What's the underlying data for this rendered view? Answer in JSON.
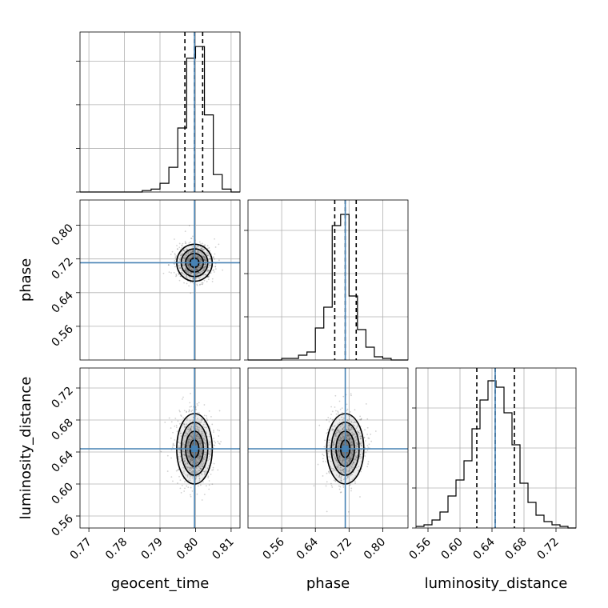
{
  "chart_data": {
    "type": "corner",
    "truth_color": "#4682b4",
    "parameters": [
      {
        "name": "geocent_time",
        "label": "geocent_time",
        "range": [
          0.7675,
          0.8125
        ],
        "ticks": [
          0.77,
          0.78,
          0.79,
          0.8,
          0.81
        ],
        "tick_labels": [
          "0.77",
          "0.78",
          "0.79",
          "0.80",
          "0.81"
        ],
        "truth": 0.7997,
        "quantiles": [
          0.797,
          0.7997,
          0.802
        ],
        "hist_bins": [
          0.7675,
          0.77,
          0.7725,
          0.775,
          0.7775,
          0.78,
          0.7825,
          0.785,
          0.7875,
          0.79,
          0.7925,
          0.795,
          0.7975,
          0.8,
          0.8025,
          0.805,
          0.8075,
          0.81,
          0.8125
        ],
        "hist_counts": [
          0,
          0,
          0,
          0,
          0,
          0,
          0,
          1,
          2,
          6,
          17,
          44,
          92,
          100,
          53,
          12,
          2,
          0
        ],
        "hist_ylim": [
          0,
          110
        ],
        "hist_grid": [
          30,
          60,
          90
        ]
      },
      {
        "name": "phase",
        "label": "phase",
        "range": [
          0.48,
          0.86
        ],
        "ticks": [
          0.56,
          0.64,
          0.72,
          0.8
        ],
        "tick_labels": [
          "0.56",
          "0.64",
          "0.72",
          "0.80"
        ],
        "truth": 0.711,
        "quantiles": [
          0.686,
          0.711,
          0.737
        ],
        "hist_bins": [
          0.48,
          0.5,
          0.52,
          0.54,
          0.56,
          0.58,
          0.6,
          0.62,
          0.64,
          0.66,
          0.68,
          0.7,
          0.72,
          0.74,
          0.76,
          0.78,
          0.8,
          0.82,
          0.84,
          0.86
        ],
        "hist_counts": [
          0,
          0,
          0,
          0,
          1,
          1,
          3,
          5,
          20,
          33,
          84,
          91,
          40,
          19,
          8,
          2,
          1,
          0,
          0
        ],
        "hist_ylim": [
          0,
          100
        ],
        "hist_grid": [
          27,
          54,
          81
        ]
      },
      {
        "name": "luminosity_distance",
        "label": "luminosity_distance",
        "range": [
          0.545,
          0.745
        ],
        "ticks": [
          0.56,
          0.6,
          0.64,
          0.68,
          0.72
        ],
        "tick_labels": [
          "0.56",
          "0.60",
          "0.64",
          "0.68",
          "0.72"
        ],
        "truth": 0.644,
        "quantiles": [
          0.621,
          0.644,
          0.668
        ],
        "hist_bins": [
          0.545,
          0.555,
          0.565,
          0.575,
          0.585,
          0.595,
          0.605,
          0.615,
          0.625,
          0.635,
          0.645,
          0.655,
          0.665,
          0.675,
          0.685,
          0.695,
          0.705,
          0.715,
          0.725,
          0.735,
          0.745
        ],
        "hist_counts": [
          1,
          2,
          5,
          10,
          20,
          30,
          42,
          62,
          80,
          92,
          88,
          72,
          52,
          28,
          16,
          8,
          4,
          2,
          1,
          0
        ],
        "hist_ylim": [
          0,
          100
        ],
        "hist_grid": [
          25,
          50,
          75
        ]
      }
    ],
    "scatter_2d": [
      {
        "x": "geocent_time",
        "y": "phase",
        "center": [
          0.7997,
          0.711
        ],
        "sigma": [
          0.0025,
          0.022
        ]
      },
      {
        "x": "geocent_time",
        "y": "luminosity_distance",
        "center": [
          0.7997,
          0.644
        ],
        "sigma": [
          0.0025,
          0.022
        ]
      },
      {
        "x": "phase",
        "y": "luminosity_distance",
        "center": [
          0.711,
          0.644
        ],
        "sigma": [
          0.022,
          0.022
        ]
      }
    ],
    "contour_levels_sigma": [
      0.5,
      1.0,
      1.5,
      2.0
    ]
  }
}
